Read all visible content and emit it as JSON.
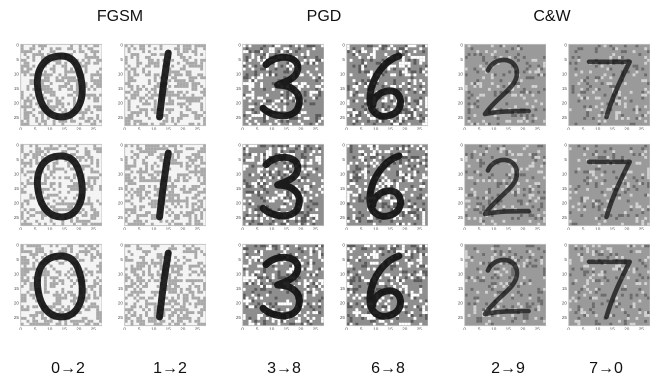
{
  "figure": {
    "methods": [
      {
        "label": "FGSM"
      },
      {
        "label": "PGD"
      },
      {
        "label": "C&W"
      }
    ],
    "columns": [
      {
        "method": "FGSM",
        "caption": "0→2",
        "digit": "0"
      },
      {
        "method": "FGSM",
        "caption": "1→2",
        "digit": "1"
      },
      {
        "method": "PGD",
        "caption": "3→8",
        "digit": "3"
      },
      {
        "method": "PGD",
        "caption": "6→8",
        "digit": "6"
      },
      {
        "method": "C&W",
        "caption": "2→9",
        "digit": "2"
      },
      {
        "method": "C&W",
        "caption": "7→0",
        "digit": "7"
      }
    ],
    "axis_ticks": [
      "0",
      "5",
      "10",
      "15",
      "20",
      "25"
    ],
    "grid": "3 rows × 6 columns of 28×28 adversarial example images",
    "palette": {
      "fgsm_noise": "#a8a8a8",
      "fgsm_bg": "#f4f4f4",
      "pgd_mid": "#8e8e8e",
      "cw_mid": "#9a9a9a",
      "ink": "#111111",
      "frame": "#bdbdbd"
    }
  }
}
